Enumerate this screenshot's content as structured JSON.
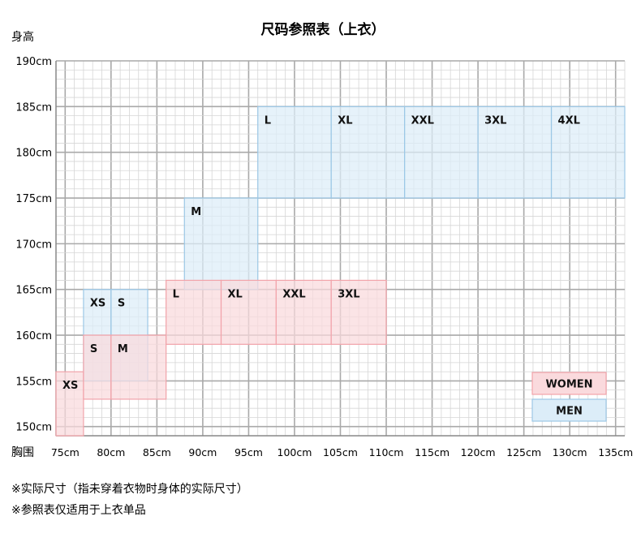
{
  "chart_data": {
    "type": "heatmap",
    "title": "尺码参照表（上衣）",
    "ylabel": "身高",
    "xlabel": "胸围",
    "y_ticks": [
      "150cm",
      "155cm",
      "160cm",
      "165cm",
      "170cm",
      "175cm",
      "180cm",
      "185cm",
      "190cm"
    ],
    "x_ticks": [
      "75cm",
      "80cm",
      "85cm",
      "90cm",
      "95cm",
      "100cm",
      "105cm",
      "110cm",
      "115cm",
      "120cm",
      "125cm",
      "130cm",
      "135cm"
    ],
    "xlim": [
      74,
      136
    ],
    "ylim": [
      149,
      190
    ],
    "grid": true,
    "legend": [
      {
        "name": "WOMEN",
        "color": "#fadadd",
        "border": "#f2a3aa"
      },
      {
        "name": "MEN",
        "color": "#dcedf8",
        "border": "#9cc8e6"
      }
    ],
    "legend_position": "bottom-right",
    "series": [
      {
        "name": "MEN",
        "color": "#dcedf8",
        "border": "#9cc8e6",
        "sizes": [
          {
            "label": "XS",
            "x": [
              77,
              80
            ],
            "y": [
              155,
              165
            ]
          },
          {
            "label": "S",
            "x": [
              80,
              84
            ],
            "y": [
              155,
              165
            ]
          },
          {
            "label": "M",
            "x": [
              88,
              96
            ],
            "y": [
              165,
              175
            ]
          },
          {
            "label": "L",
            "x": [
              96,
              104
            ],
            "y": [
              175,
              185
            ]
          },
          {
            "label": "XL",
            "x": [
              104,
              112
            ],
            "y": [
              175,
              185
            ]
          },
          {
            "label": "XXL",
            "x": [
              112,
              120
            ],
            "y": [
              175,
              185
            ]
          },
          {
            "label": "3XL",
            "x": [
              120,
              128
            ],
            "y": [
              175,
              185
            ]
          },
          {
            "label": "4XL",
            "x": [
              128,
              136
            ],
            "y": [
              175,
              185
            ]
          }
        ]
      },
      {
        "name": "WOMEN",
        "color": "#fadadd",
        "border": "#f2a3aa",
        "sizes": [
          {
            "label": "XS",
            "x": [
              74,
              77
            ],
            "y": [
              149,
              156
            ]
          },
          {
            "label": "S",
            "x": [
              77,
              80
            ],
            "y": [
              153,
              160
            ]
          },
          {
            "label": "M",
            "x": [
              80,
              86
            ],
            "y": [
              153,
              160
            ]
          },
          {
            "label": "L",
            "x": [
              86,
              92
            ],
            "y": [
              159,
              166
            ]
          },
          {
            "label": "XL",
            "x": [
              92,
              98
            ],
            "y": [
              159,
              166
            ]
          },
          {
            "label": "XXL",
            "x": [
              98,
              104
            ],
            "y": [
              159,
              166
            ]
          },
          {
            "label": "3XL",
            "x": [
              104,
              110
            ],
            "y": [
              159,
              166
            ]
          }
        ]
      }
    ]
  },
  "notes": [
    "※实际尺寸（指未穿着衣物时身体的实际尺寸）",
    "※参照表仅适用于上衣单品"
  ]
}
